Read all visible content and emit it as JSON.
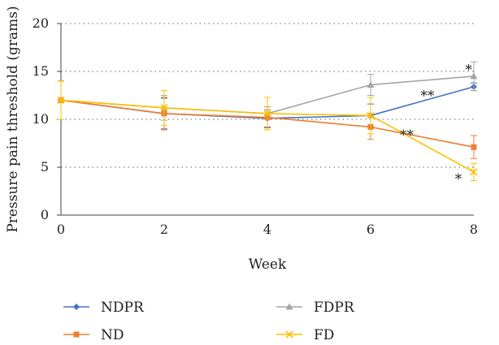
{
  "chart_data": {
    "type": "line",
    "xlabel": "Week",
    "ylabel": "Pressure pain threshold (grams)",
    "x": [
      0,
      2,
      4,
      6,
      8
    ],
    "x_ticks": [
      "0",
      "2",
      "4",
      "6",
      "8"
    ],
    "y_ticks": [
      "0",
      "5",
      "10",
      "15",
      "20"
    ],
    "xlim": [
      0,
      8
    ],
    "ylim": [
      0,
      20
    ],
    "grid": "horizontal dotted",
    "legend_position": "bottom",
    "series": [
      {
        "name": "NDPR",
        "color": "#4472c4",
        "marker": "diamond",
        "values": [
          12.0,
          10.6,
          10.1,
          10.4,
          13.4
        ],
        "errors": [
          2.0,
          1.6,
          0.9,
          1.2,
          0.4
        ]
      },
      {
        "name": "FDPR",
        "color": "#a5a5a5",
        "marker": "triangle",
        "values": [
          12.0,
          11.2,
          10.6,
          13.6,
          14.5
        ],
        "errors": [
          2.0,
          1.3,
          0.4,
          1.1,
          1.5
        ]
      },
      {
        "name": "ND",
        "color": "#ed7d31",
        "marker": "square",
        "values": [
          12.0,
          10.6,
          10.2,
          9.2,
          7.1
        ],
        "errors": [
          2.0,
          1.7,
          1.1,
          1.3,
          1.2
        ]
      },
      {
        "name": "FD",
        "color": "#ffc000",
        "marker": "x",
        "values": [
          12.0,
          11.2,
          10.6,
          10.4,
          4.5
        ],
        "errors": [
          2.0,
          1.8,
          1.7,
          1.9,
          0.9
        ]
      }
    ],
    "annotations": [
      {
        "text": "*",
        "x": 7.9,
        "y": 15.2
      },
      {
        "text": "**",
        "x": 7.1,
        "y": 12.5
      },
      {
        "text": "**",
        "x": 6.7,
        "y": 8.4
      },
      {
        "text": "*",
        "x": 7.7,
        "y": 3.8
      }
    ]
  }
}
